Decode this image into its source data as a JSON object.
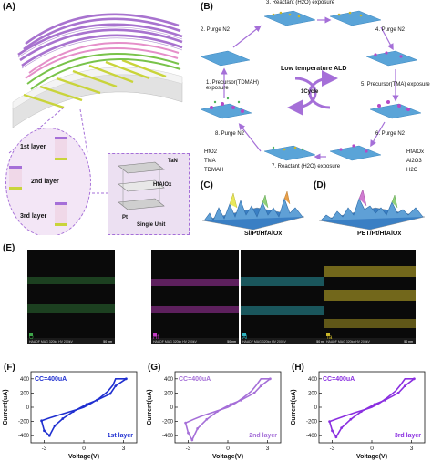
{
  "panel_a": {
    "label": "(A)",
    "layers": [
      "1st layer",
      "2nd layer",
      "3rd layer"
    ],
    "unit_materials": [
      "TaN",
      "HfAlOx",
      "Pt"
    ],
    "unit_caption": "Single Unit"
  },
  "panel_b": {
    "label": "(B)",
    "center_title": "Low temperature ALD",
    "cycle": "1Cycle",
    "steps": [
      "1. Precursor(TDMAH) exposure",
      "2. Purge N2",
      "3. Reactant (H2O) exposure",
      "4. Purge N2",
      "5. Precursor(TMA) exposure",
      "6. Purge N2",
      "7. Reactant (H2O) exposure",
      "8. Purge N2"
    ],
    "legend_left": [
      "HfO2",
      "TMA",
      "TDMAH"
    ],
    "legend_right": [
      "HfAlOx",
      "Al2O3",
      "H2O"
    ]
  },
  "panel_c": {
    "label": "(C)",
    "caption": "Si/Pt/HfAlOx"
  },
  "panel_d": {
    "label": "(D)",
    "caption": "PET/Pt/HfAlOx"
  },
  "panel_e": {
    "label": "(E)",
    "maps": [
      {
        "element": "O",
        "color": "#3fa64a"
      },
      {
        "element": "Hf",
        "color": "#c43bc4"
      },
      {
        "element": "Al",
        "color": "#2fb3c0"
      },
      {
        "element": "Ta",
        "color": "#c9b52a"
      }
    ],
    "footer": "HAADF  MAG 320kx  HV 200kV",
    "scale": "50 nm"
  },
  "chart_data": [
    {
      "type": "line",
      "panel": "(F)",
      "annotation": "CC=400uA",
      "layer_label": "1st layer",
      "xlabel": "Voltage(V)",
      "ylabel": "Current(uA)",
      "xlim": [
        -4,
        4
      ],
      "ylim": [
        -500,
        500
      ],
      "xticks": [
        -3,
        0,
        3
      ],
      "yticks": [
        -400,
        -200,
        0,
        200,
        400
      ],
      "color": "#1f2fd0",
      "set_x": [
        -3.2,
        -2.6,
        -2.0,
        -1.2,
        -0.4,
        0.0,
        0.6,
        1.2,
        1.8,
        2.2,
        2.4,
        3.2
      ],
      "set_y": [
        -190,
        -150,
        -115,
        -70,
        -25,
        0,
        60,
        130,
        220,
        310,
        400,
        400
      ],
      "reset_x": [
        3.2,
        2.4,
        2.0,
        1.0,
        0.2,
        -0.8,
        -1.6,
        -2.2,
        -2.6,
        -3.0,
        -3.2
      ],
      "reset_y": [
        400,
        300,
        190,
        100,
        40,
        -60,
        -160,
        -260,
        -400,
        -330,
        -190
      ]
    },
    {
      "type": "line",
      "panel": "(G)",
      "annotation": "CC=400uA",
      "layer_label": "2nd layer",
      "xlabel": "Voltage(V)",
      "ylabel": "Current(uA)",
      "xlim": [
        -4,
        4
      ],
      "ylim": [
        -500,
        500
      ],
      "xticks": [
        -3,
        0,
        3
      ],
      "yticks": [
        -400,
        -200,
        0,
        200,
        400
      ],
      "color": "#a56fd8",
      "set_x": [
        -3.2,
        -2.6,
        -2.0,
        -1.2,
        -0.4,
        0.0,
        0.6,
        1.2,
        1.8,
        2.2,
        2.5,
        3.2
      ],
      "set_y": [
        -220,
        -170,
        -125,
        -75,
        -25,
        0,
        60,
        140,
        230,
        320,
        400,
        400
      ],
      "reset_x": [
        3.2,
        2.5,
        2.0,
        1.0,
        0.2,
        -0.8,
        -1.6,
        -2.3,
        -2.7,
        -3.0,
        -3.2
      ],
      "reset_y": [
        400,
        300,
        200,
        100,
        40,
        -60,
        -170,
        -300,
        -460,
        -360,
        -220
      ]
    },
    {
      "type": "line",
      "panel": "(H)",
      "annotation": "CC=400uA",
      "layer_label": "3rd layer",
      "xlabel": "Voltage(V)",
      "ylabel": "Current(uA)",
      "xlim": [
        -4,
        4
      ],
      "ylim": [
        -500,
        500
      ],
      "xticks": [
        -3,
        0,
        3
      ],
      "yticks": [
        -400,
        -200,
        0,
        200,
        400
      ],
      "color": "#8a2fe0",
      "set_x": [
        -3.2,
        -2.6,
        -2.0,
        -1.2,
        -0.4,
        0.0,
        0.6,
        1.2,
        1.8,
        2.2,
        2.5,
        3.2
      ],
      "set_y": [
        -200,
        -160,
        -120,
        -70,
        -25,
        0,
        60,
        140,
        230,
        320,
        400,
        400
      ],
      "reset_x": [
        3.2,
        2.5,
        2.0,
        1.0,
        0.2,
        -0.8,
        -1.6,
        -2.3,
        -2.7,
        -3.0,
        -3.2
      ],
      "reset_y": [
        400,
        300,
        200,
        100,
        40,
        -60,
        -170,
        -290,
        -420,
        -330,
        -200
      ]
    }
  ]
}
